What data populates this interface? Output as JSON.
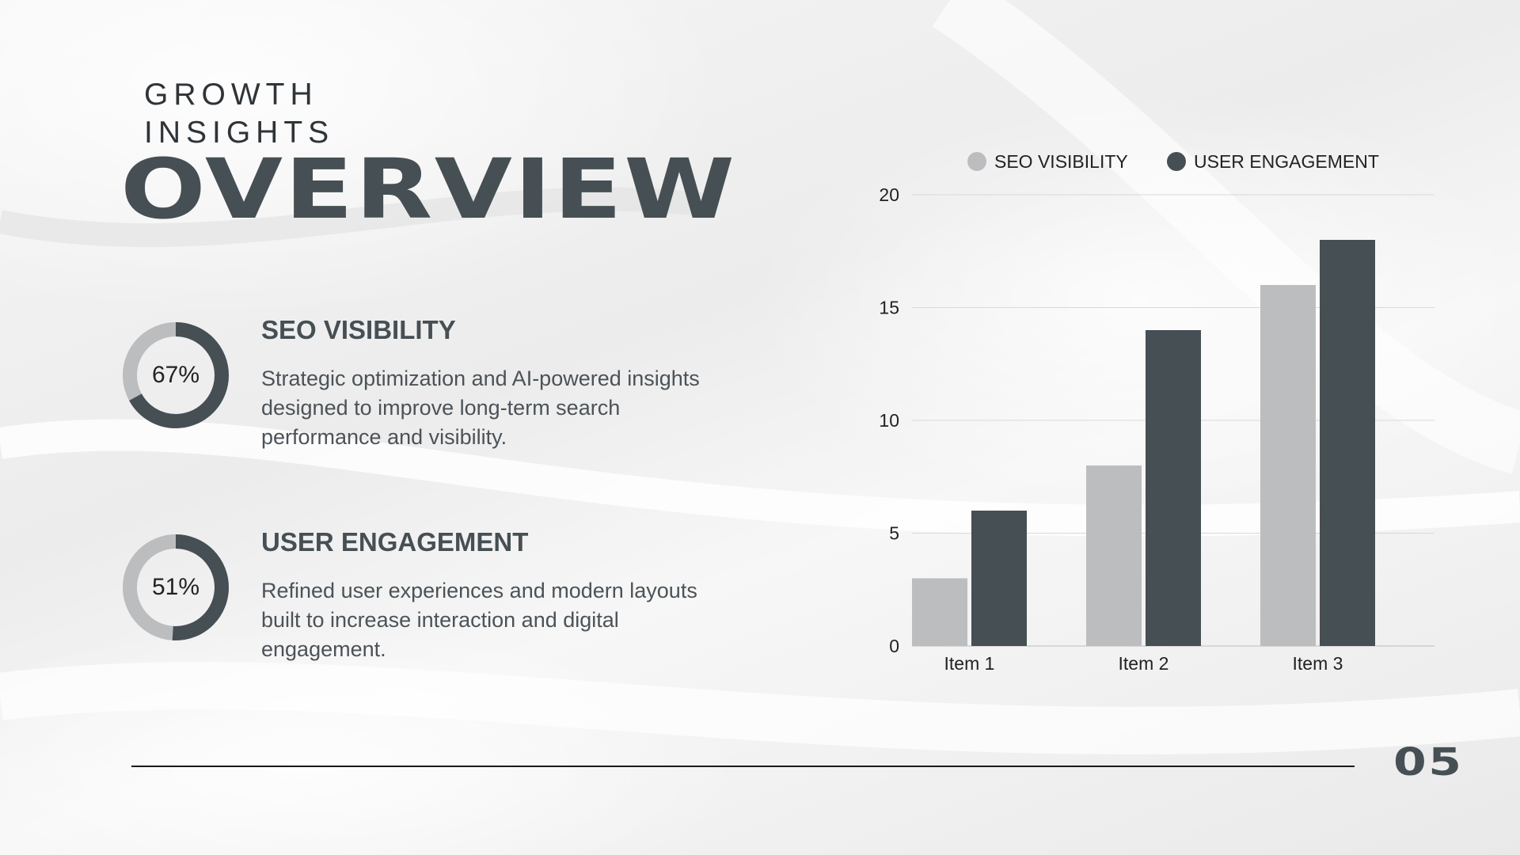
{
  "slide": {
    "kicker_line1": "GROWTH",
    "kicker_line2": "INSIGHTS",
    "title": "OVERVIEW",
    "page_number": "05"
  },
  "stats": [
    {
      "percent_label": "67%",
      "percent": 67,
      "title": "SEO VISIBILITY",
      "description": "Strategic optimization and AI-powered insights designed to improve long-term search performance and visibility."
    },
    {
      "percent_label": "51%",
      "percent": 51,
      "title": "USER ENGAGEMENT",
      "description": "Refined user experiences and modern layouts built to increase interaction and digital engagement."
    }
  ],
  "colors": {
    "light": "#bcbdbe",
    "dark": "#464f54",
    "grid": "#d9d9d9",
    "text": "#222222"
  },
  "chart_data": {
    "type": "bar",
    "categories": [
      "Item 1",
      "Item 2",
      "Item 3"
    ],
    "series": [
      {
        "name": "SEO VISIBILITY",
        "values": [
          3,
          8,
          16
        ],
        "color": "#bcbdbe"
      },
      {
        "name": "USER ENGAGEMENT",
        "values": [
          6,
          14,
          18
        ],
        "color": "#464f54"
      }
    ],
    "yticks": [
      0,
      5,
      10,
      15,
      20
    ],
    "ylim": [
      0,
      20
    ],
    "grid": true,
    "legend": "top"
  }
}
